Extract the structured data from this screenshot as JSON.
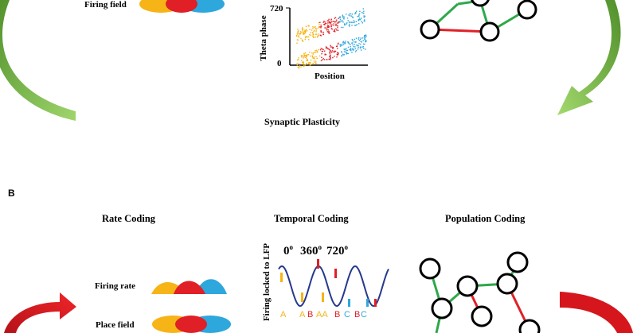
{
  "panel_a": {
    "firing_field_label": "Firing field",
    "phase_plot": {
      "ylabel": "Theta phase",
      "xlabel": "Position",
      "y_top_tick": "720",
      "y_bottom_tick": "0"
    },
    "synaptic_plasticity_label": "Synaptic Plasticity"
  },
  "panel_b": {
    "panel_letter": "B",
    "rate_coding_title": "Rate Coding",
    "temporal_coding_title": "Temporal Coding",
    "population_coding_title": "Population Coding",
    "firing_rate_label": "Firing rate",
    "place_field_label": "Place field",
    "lfp_axis_label": "Firing locked to LFP",
    "phase_labels": {
      "p0": "0",
      "p360": "360",
      "p720": "720",
      "degree_mark": "o"
    },
    "spike_letters": [
      "A",
      "A",
      "B",
      "AA",
      "B",
      "C",
      "B",
      "C"
    ]
  },
  "colors": {
    "yellow": "#f6b417",
    "red": "#e01f26",
    "blue": "#2ea7dd",
    "green_arrow": "#7cc24a",
    "red_arrow": "#e3171d",
    "node_edge_green": "#2ea84a",
    "node_edge_red": "#e02127",
    "wave": "#26398c"
  }
}
